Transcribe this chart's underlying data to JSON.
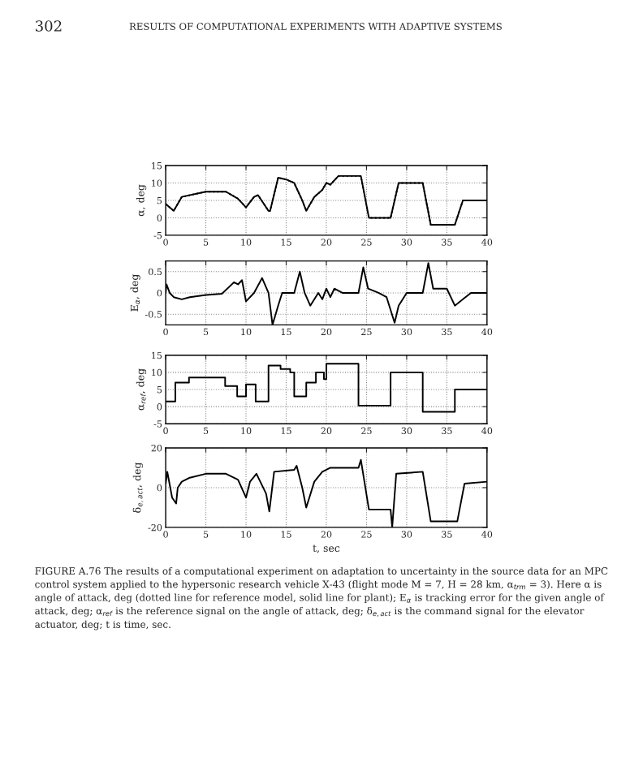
{
  "chart_data": [
    {
      "type": "line",
      "ylabel": "α, deg",
      "xlim": [
        0,
        40
      ],
      "xticks": [
        0,
        5,
        10,
        15,
        20,
        25,
        30,
        35,
        40
      ],
      "ylim": [
        -5,
        15
      ],
      "yticks": [
        -5,
        0,
        5,
        10,
        15
      ],
      "grid": true,
      "annotations": [
        "302",
        "RESULTS OF COMPUTATIONAL EXPERIMENTS WITH ADAPTIVE SYSTEMS"
      ],
      "x": [
        0,
        1,
        2,
        5,
        7.5,
        9,
        10,
        11,
        11.5,
        12.8,
        13,
        14,
        15,
        16,
        17,
        17.5,
        18.5,
        19.5,
        20,
        20.5,
        21.5,
        24.3,
        25.3,
        28,
        29,
        32,
        33,
        36,
        37,
        40
      ],
      "series": [
        {
          "color": "#000000",
          "line_style": "dotted",
          "values": [
            4,
            2,
            6,
            7.5,
            7.5,
            5.5,
            3,
            6,
            6.5,
            2,
            2,
            11.5,
            11,
            10,
            5,
            2,
            6,
            8,
            10,
            9.5,
            12,
            12,
            0,
            0,
            10,
            10,
            -2,
            -2,
            5,
            5
          ]
        },
        {
          "color": "#000000",
          "line_style": "solid",
          "values": [
            4,
            2,
            6,
            7.5,
            7.5,
            5.5,
            3,
            6,
            6.5,
            2,
            2,
            11.5,
            11,
            10,
            5,
            2,
            6,
            8,
            10,
            9.5,
            12,
            12,
            0,
            0,
            10,
            10,
            -2,
            -2,
            5,
            5
          ]
        }
      ]
    },
    {
      "type": "line",
      "ylabel": "E$_{α}$, deg",
      "xlim": [
        0,
        40
      ],
      "xticks": [
        0,
        5,
        10,
        15,
        20,
        25,
        30,
        35,
        40
      ],
      "ylim": [
        -0.75,
        0.75
      ],
      "yticks": [
        -0.5,
        0,
        0.5
      ],
      "grid": true,
      "x": [
        0,
        0.1,
        0.5,
        1,
        2,
        3,
        5,
        7,
        8.5,
        9,
        9.5,
        10,
        11,
        12,
        12.8,
        13.3,
        14,
        14.5,
        16,
        16.7,
        17.3,
        18,
        19,
        19.5,
        20,
        20.5,
        21,
        22,
        24,
        24.6,
        25.2,
        26.5,
        27.5,
        28.5,
        29,
        30,
        32,
        32.7,
        33.3,
        35,
        36,
        37,
        38,
        40
      ],
      "series": [
        {
          "color": "#000000",
          "line_style": "solid",
          "values": [
            0,
            0.2,
            0,
            -0.1,
            -0.15,
            -0.1,
            -0.05,
            -0.02,
            0.25,
            0.2,
            0.3,
            -0.2,
            0,
            0.35,
            0,
            -0.75,
            -0.3,
            0,
            0,
            0.5,
            0,
            -0.3,
            0,
            -0.15,
            0.1,
            -0.1,
            0.1,
            0,
            0,
            0.6,
            0.1,
            0,
            -0.1,
            -0.7,
            -0.3,
            0,
            0,
            0.7,
            0.1,
            0.1,
            -0.3,
            -0.15,
            0,
            0
          ]
        }
      ]
    },
    {
      "type": "step",
      "ylabel": "α$_{ref}$, deg",
      "xlim": [
        0,
        40
      ],
      "xticks": [
        0,
        5,
        10,
        15,
        20,
        25,
        30,
        35,
        40
      ],
      "ylim": [
        -5,
        15
      ],
      "yticks": [
        -5,
        0,
        5,
        10,
        15
      ],
      "grid": true,
      "x": [
        0,
        1.2,
        2.9,
        7.4,
        8.9,
        10,
        11.2,
        12.8,
        14.3,
        15.5,
        16,
        17.5,
        18.7,
        19.7,
        20,
        24,
        28,
        32,
        36,
        40
      ],
      "series": [
        {
          "color": "#000000",
          "line_style": "solid",
          "values": [
            1.5,
            7,
            8.5,
            6,
            3,
            6.5,
            1.5,
            12,
            11,
            10,
            3,
            7,
            10,
            8,
            12.5,
            0.3,
            10,
            -1.5,
            5,
            5
          ]
        }
      ]
    },
    {
      "type": "line",
      "ylabel": "δ$_{e,act}$, deg",
      "xlabel": "t, sec",
      "xlim": [
        0,
        40
      ],
      "xticks": [
        0,
        5,
        10,
        15,
        20,
        25,
        30,
        35,
        40
      ],
      "ylim": [
        -20,
        20
      ],
      "yticks": [
        -20,
        0,
        20
      ],
      "grid": true,
      "annotations": [
        "FIGURE A.76 The results of a computational experiment on adaptation to uncertainty in the source data for an MPC control system applied to the hypersonic research vehicle X-43 (flight mode M = 7, H = 28 km, α$_{trm}$ = 3). Here α is angle of attack, deg (dotted line for reference model, solid line for plant); E$_{α}$ is tracking error for the given angle of attack, deg; α$_{ref}$ is the reference signal on the angle of attack, deg; δ$_{e,act}$ is the command signal for the elevator actuator, deg; t is time, sec."
      ],
      "x": [
        0,
        0.2,
        0.8,
        1.3,
        1.5,
        2,
        3,
        5,
        7.5,
        9,
        10,
        10.5,
        11.3,
        12.5,
        12.9,
        13.5,
        16,
        16.3,
        17,
        17.5,
        18.5,
        19.5,
        20.5,
        24,
        24.3,
        24.5,
        25.3,
        28,
        28.2,
        28.7,
        32,
        33,
        36.3,
        37.2,
        40
      ],
      "series": [
        {
          "color": "#000000",
          "line_style": "solid",
          "values": [
            2,
            8,
            -5,
            -8,
            0,
            3,
            5,
            7,
            7,
            4,
            -5,
            3,
            7,
            -3,
            -12,
            8,
            9,
            11,
            0,
            -10,
            3,
            8,
            10,
            10,
            14,
            9,
            -11,
            -11,
            -20,
            7,
            8,
            -17,
            -17,
            2,
            3
          ]
        }
      ]
    }
  ]
}
